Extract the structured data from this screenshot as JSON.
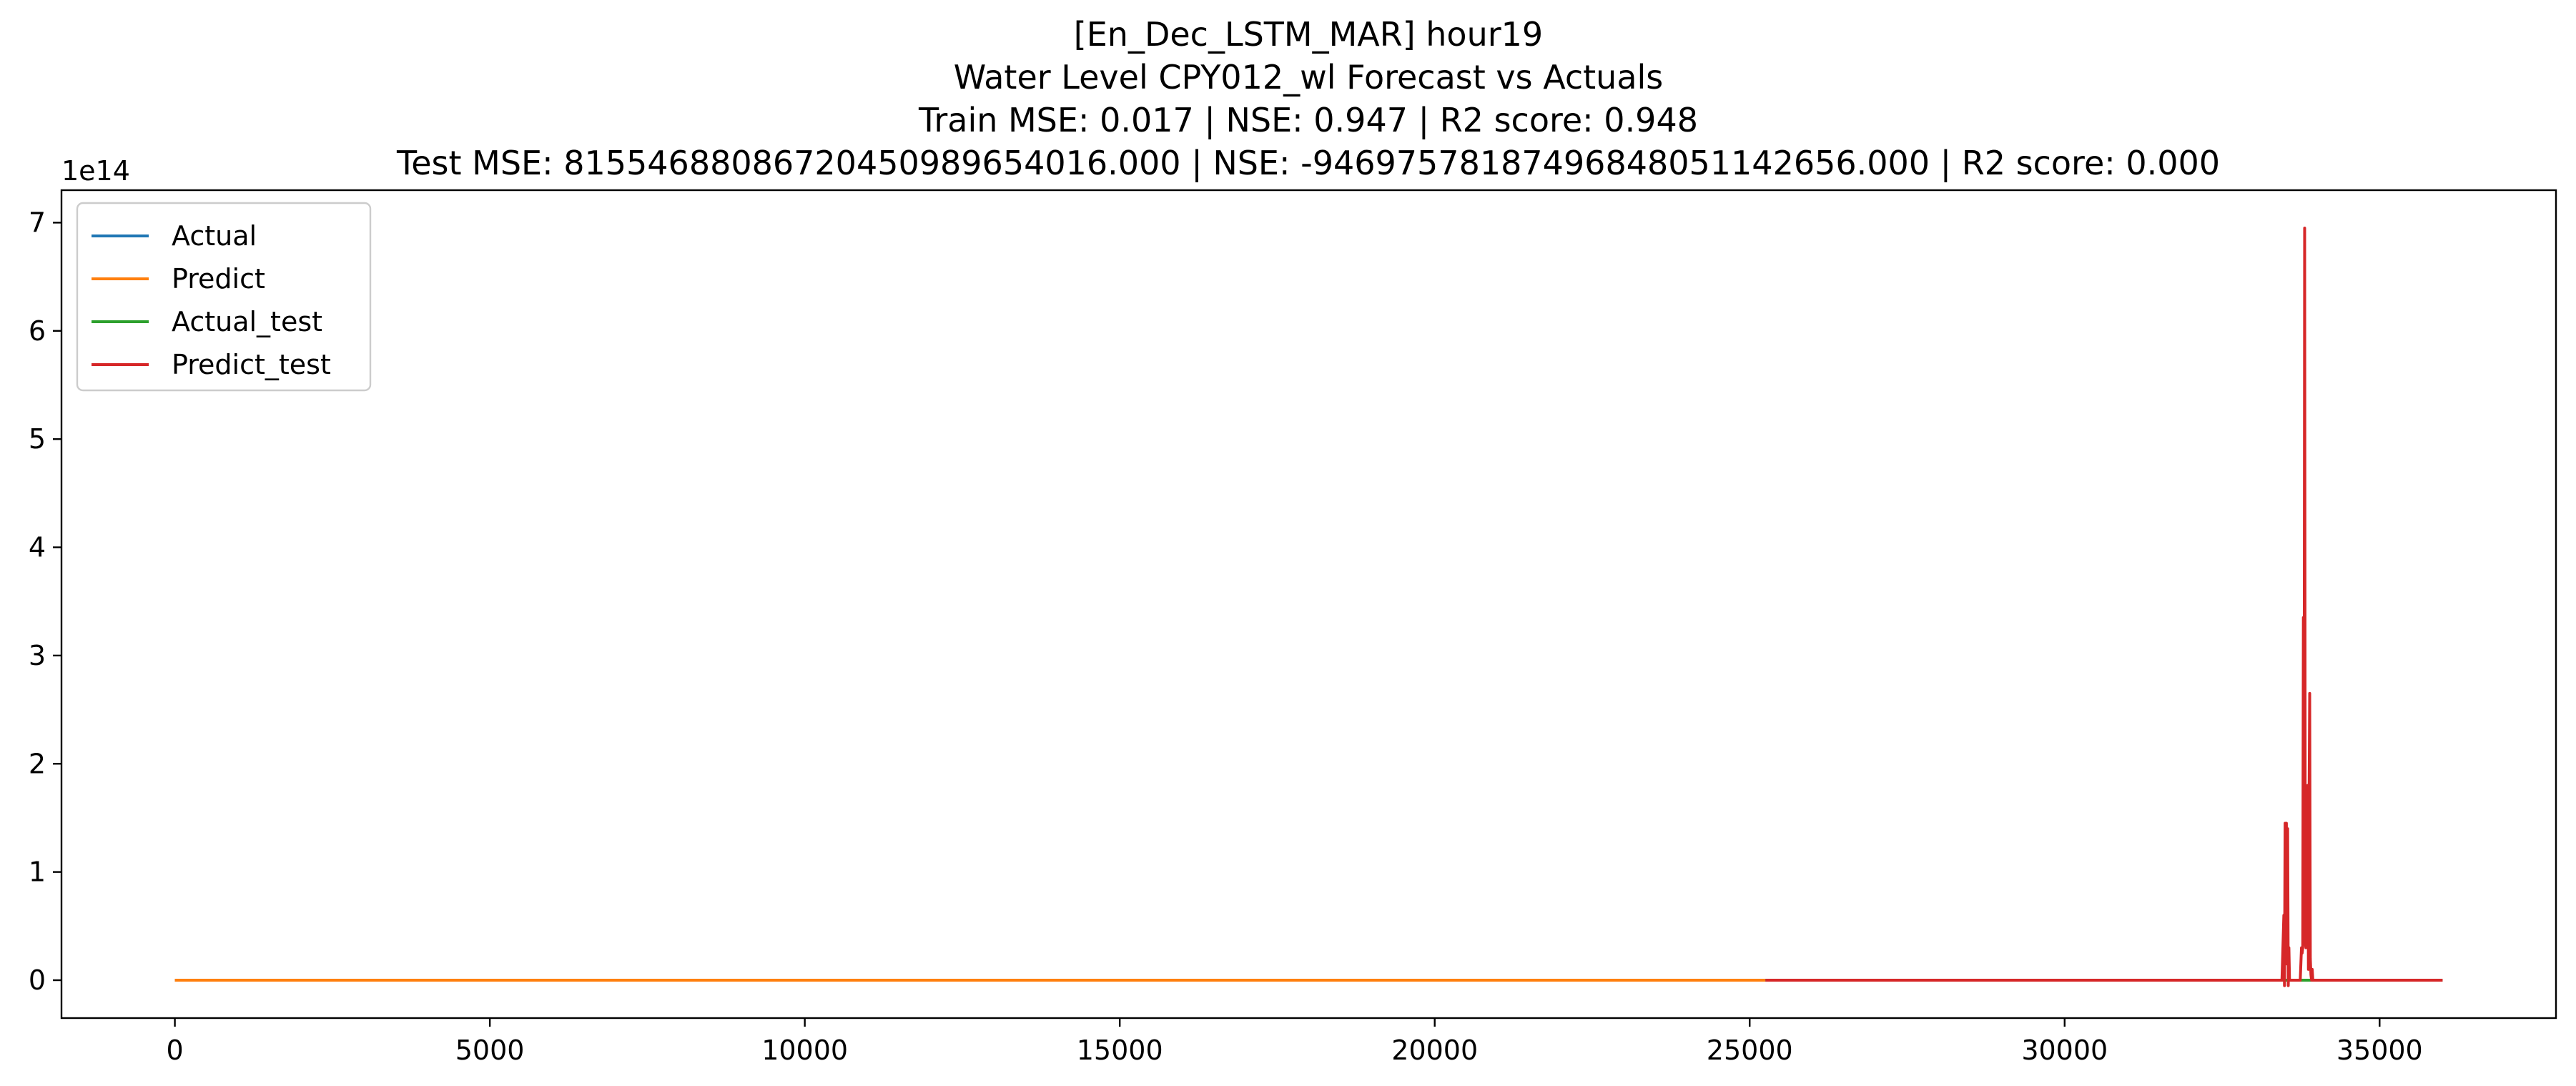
{
  "chart_data": {
    "type": "line",
    "title_lines": [
      "[En_Dec_LSTM_MAR] hour19",
      "Water Level CPY012_wl Forecast vs Actuals",
      "Train MSE: 0.017 | NSE: 0.947 | R2 score: 0.948",
      "Test  MSE: 815546880867204509896540​16.000 | NSE: -946975781874968480511426​56.000 | R2 score: 0.000"
    ],
    "xlabel": "",
    "ylabel": "",
    "y_offset_label": "1e14",
    "y_scale": 100000000000000.0,
    "xlim": [
      -1800,
      37800
    ],
    "ylim": [
      -0.35,
      7.3
    ],
    "x_ticks": [
      0,
      5000,
      10000,
      15000,
      20000,
      25000,
      30000,
      35000
    ],
    "x_tick_labels": [
      "0",
      "5000",
      "10000",
      "15000",
      "20000",
      "25000",
      "30000",
      "35000"
    ],
    "y_ticks": [
      0,
      1,
      2,
      3,
      4,
      5,
      6,
      7
    ],
    "y_tick_labels": [
      "0",
      "1",
      "2",
      "3",
      "4",
      "5",
      "6",
      "7"
    ],
    "legend_position": "upper-left",
    "grid": false,
    "series": [
      {
        "name": "Actual",
        "color": "#1f77b4",
        "x": [
          0,
          25250
        ],
        "y": [
          0,
          0
        ]
      },
      {
        "name": "Predict",
        "color": "#ff7f0e",
        "x": [
          0,
          25250
        ],
        "y": [
          0,
          0
        ]
      },
      {
        "name": "Actual_test",
        "color": "#2ca02c",
        "x": [
          25250,
          36000
        ],
        "y": [
          0,
          0
        ]
      },
      {
        "name": "Predict_test",
        "color": "#d62728",
        "x": [
          25250,
          33450,
          33480,
          33490,
          33500,
          33510,
          33520,
          33530,
          33540,
          33550,
          33560,
          33570,
          33580,
          33600,
          33700,
          33740,
          33760,
          33770,
          33780,
          33790,
          33800,
          33810,
          33820,
          33830,
          33840,
          33850,
          33860,
          33870,
          33880,
          33890,
          33900,
          33910,
          33920,
          33930,
          33940,
          33960,
          34000,
          36000
        ],
        "y": [
          0,
          0,
          0.6,
          -0.05,
          1.45,
          1.35,
          1.45,
          0.15,
          1.4,
          -0.05,
          0.3,
          0,
          0,
          0,
          0,
          0,
          0.3,
          0.25,
          0.3,
          3.35,
          0.5,
          6.95,
          0.35,
          0.3,
          1.7,
          0.5,
          1.8,
          0.1,
          1.6,
          2.65,
          0.2,
          0.05,
          0,
          0.1,
          0,
          0,
          0,
          0
        ]
      }
    ]
  }
}
